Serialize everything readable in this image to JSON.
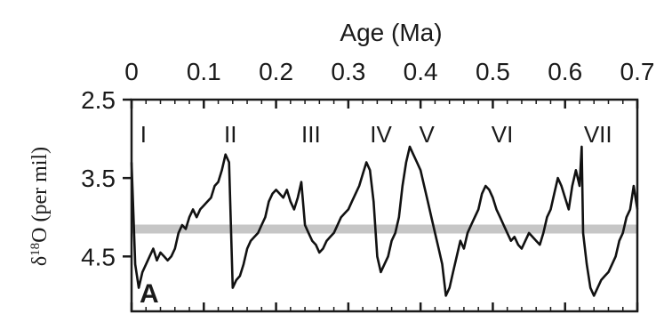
{
  "chart_data": {
    "type": "line",
    "panel_label": "A",
    "top_axis_label": "Age (Ma)",
    "ylabel_main": "δ",
    "ylabel_sup": "18",
    "ylabel_rest": "O (per mil)",
    "x_ticks": [
      "0",
      "0.1",
      "0.2",
      "0.3",
      "0.4",
      "0.5",
      "0.6",
      "0.7"
    ],
    "x_tick_values": [
      0,
      0.1,
      0.2,
      0.3,
      0.4,
      0.5,
      0.6,
      0.7
    ],
    "y_ticks": [
      "2.5",
      "3.5",
      "4.5"
    ],
    "y_tick_values": [
      2.5,
      3.5,
      4.5
    ],
    "xlim": [
      0,
      0.7
    ],
    "ylim": [
      2.5,
      5.2
    ],
    "y_inverted": true,
    "grid": false,
    "stage_labels": [
      {
        "label": "I",
        "x": 0.012
      },
      {
        "label": "II",
        "x": 0.128
      },
      {
        "label": "III",
        "x": 0.235
      },
      {
        "label": "IV",
        "x": 0.33
      },
      {
        "label": "V",
        "x": 0.398
      },
      {
        "label": "VI",
        "x": 0.498
      },
      {
        "label": "VII",
        "x": 0.626
      }
    ],
    "reference_band": {
      "y": 4.15,
      "color": "#bdbdbd"
    },
    "series": [
      {
        "x": [
          0,
          0.005,
          0.01,
          0.015,
          0.02,
          0.025,
          0.03,
          0.035,
          0.04,
          0.045,
          0.05,
          0.055,
          0.06,
          0.065,
          0.07,
          0.075,
          0.08,
          0.085,
          0.09,
          0.095,
          0.1,
          0.105,
          0.11,
          0.115,
          0.12,
          0.125,
          0.13,
          0.135,
          0.14,
          0.145,
          0.15,
          0.155,
          0.16,
          0.165,
          0.17,
          0.175,
          0.18,
          0.185,
          0.19,
          0.195,
          0.2,
          0.205,
          0.21,
          0.215,
          0.22,
          0.225,
          0.23,
          0.235,
          0.24,
          0.245,
          0.25,
          0.255,
          0.26,
          0.265,
          0.27,
          0.275,
          0.28,
          0.285,
          0.29,
          0.295,
          0.3,
          0.305,
          0.31,
          0.315,
          0.32,
          0.325,
          0.33,
          0.335,
          0.34,
          0.345,
          0.35,
          0.355,
          0.36,
          0.365,
          0.37,
          0.375,
          0.38,
          0.385,
          0.39,
          0.395,
          0.4,
          0.405,
          0.41,
          0.415,
          0.42,
          0.425,
          0.43,
          0.435,
          0.44,
          0.445,
          0.45,
          0.455,
          0.46,
          0.465,
          0.47,
          0.475,
          0.48,
          0.485,
          0.49,
          0.495,
          0.5,
          0.505,
          0.51,
          0.515,
          0.52,
          0.525,
          0.53,
          0.535,
          0.54,
          0.545,
          0.55,
          0.555,
          0.56,
          0.565,
          0.57,
          0.575,
          0.58,
          0.585,
          0.59,
          0.595,
          0.6,
          0.605,
          0.61,
          0.615,
          0.62,
          0.623,
          0.625,
          0.63,
          0.635,
          0.64,
          0.645,
          0.65,
          0.655,
          0.66,
          0.665,
          0.67,
          0.675,
          0.68,
          0.685,
          0.69,
          0.695,
          0.7
        ],
        "y": [
          3.3,
          4.6,
          4.9,
          4.7,
          4.6,
          4.5,
          4.4,
          4.55,
          4.45,
          4.5,
          4.55,
          4.5,
          4.4,
          4.2,
          4.1,
          4.15,
          4.0,
          3.9,
          4.0,
          3.9,
          3.85,
          3.8,
          3.75,
          3.6,
          3.55,
          3.4,
          3.2,
          3.3,
          4.9,
          4.8,
          4.75,
          4.6,
          4.4,
          4.3,
          4.25,
          4.2,
          4.1,
          4.0,
          3.8,
          3.7,
          3.65,
          3.7,
          3.75,
          3.65,
          3.8,
          3.9,
          3.75,
          3.55,
          4.1,
          4.2,
          4.3,
          4.35,
          4.45,
          4.4,
          4.3,
          4.25,
          4.2,
          4.1,
          4.0,
          3.95,
          3.9,
          3.8,
          3.7,
          3.6,
          3.45,
          3.3,
          3.4,
          3.8,
          4.5,
          4.7,
          4.6,
          4.5,
          4.3,
          4.2,
          4.0,
          3.6,
          3.3,
          3.1,
          3.2,
          3.3,
          3.4,
          3.6,
          3.8,
          4.0,
          4.2,
          4.4,
          4.6,
          5.0,
          4.9,
          4.7,
          4.5,
          4.3,
          4.4,
          4.2,
          4.1,
          4.0,
          3.9,
          3.7,
          3.6,
          3.65,
          3.75,
          3.9,
          4.0,
          4.1,
          4.2,
          4.3,
          4.25,
          4.35,
          4.4,
          4.3,
          4.2,
          4.25,
          4.3,
          4.35,
          4.2,
          4.0,
          3.9,
          3.7,
          3.5,
          3.6,
          3.75,
          3.9,
          3.6,
          3.4,
          3.6,
          3.1,
          4.2,
          4.6,
          4.9,
          5.0,
          4.9,
          4.8,
          4.75,
          4.7,
          4.6,
          4.5,
          4.3,
          4.2,
          4.0,
          3.9,
          3.6,
          3.9
        ]
      }
    ]
  }
}
